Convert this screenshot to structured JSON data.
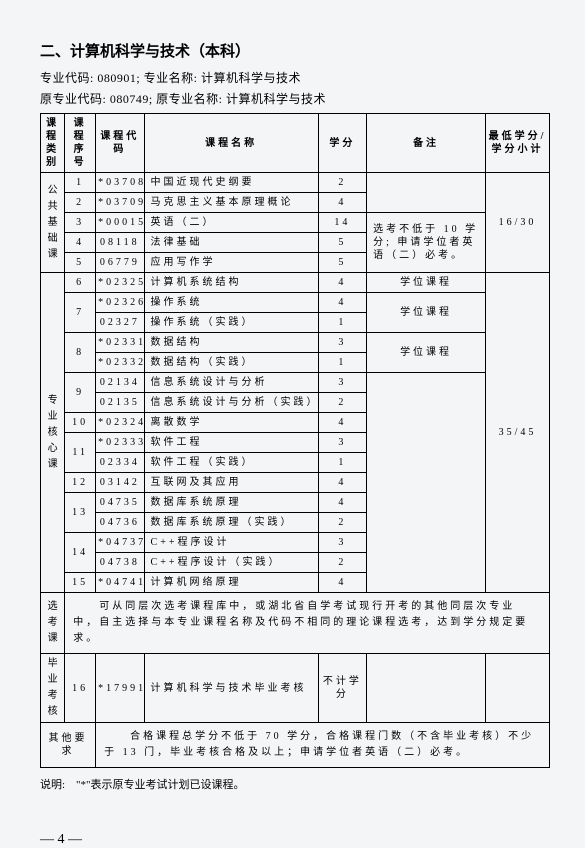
{
  "title": "二、计算机科学与技术（本科）",
  "subtitle1": "专业代码: 080901;  专业名称: 计算机科学与技术",
  "subtitle2": "原专业代码: 080749;  原专业名称: 计算机科学与技术",
  "headers": {
    "category": "课程类别",
    "seq": "课程序号",
    "code": "课程代码",
    "name": "课程名称",
    "credit": "学分",
    "remark": "备注",
    "min": "最低学分/学分小计"
  },
  "cat1": "公共基础课",
  "cat2": "专业核心课",
  "cat3": "选考课",
  "cat4": "毕业考核",
  "cat5": "其他要求",
  "rows": [
    {
      "seq": "1",
      "code": "*03708",
      "name": "中国近现代史纲要",
      "credit": "2"
    },
    {
      "seq": "2",
      "code": "*03709",
      "name": "马克思主义基本原理概论",
      "credit": "4"
    },
    {
      "seq": "3",
      "code": "*00015",
      "name": "英语（二）",
      "credit": "14"
    },
    {
      "seq": "4",
      "code": "08118",
      "name": "法律基础",
      "credit": "5"
    },
    {
      "seq": "5",
      "code": "06779",
      "name": "应用写作学",
      "credit": "5"
    },
    {
      "seq": "6",
      "code": "*02325",
      "name": "计算机系统结构",
      "credit": "4"
    },
    {
      "seq": "7",
      "code": "*02326",
      "name": "操作系统",
      "credit": "4"
    },
    {
      "seq": "",
      "code": "02327",
      "name": "操作系统（实践）",
      "credit": "1"
    },
    {
      "seq": "8",
      "code": "*02331",
      "name": "数据结构",
      "credit": "3"
    },
    {
      "seq": "",
      "code": "*02332",
      "name": "数据结构（实践）",
      "credit": "1"
    },
    {
      "seq": "9",
      "code": "02134",
      "name": "信息系统设计与分析",
      "credit": "3"
    },
    {
      "seq": "",
      "code": "02135",
      "name": "信息系统设计与分析（实践）",
      "credit": "2"
    },
    {
      "seq": "10",
      "code": "*02324",
      "name": "离散数学",
      "credit": "4"
    },
    {
      "seq": "11",
      "code": "*02333",
      "name": "软件工程",
      "credit": "3"
    },
    {
      "seq": "",
      "code": "02334",
      "name": "软件工程（实践）",
      "credit": "1"
    },
    {
      "seq": "12",
      "code": "03142",
      "name": "互联网及其应用",
      "credit": "4"
    },
    {
      "seq": "13",
      "code": "04735",
      "name": "数据库系统原理",
      "credit": "4"
    },
    {
      "seq": "",
      "code": "04736",
      "name": "数据库系统原理（实践）",
      "credit": "2"
    },
    {
      "seq": "14",
      "code": "*04737",
      "name": "C++程序设计",
      "credit": "3"
    },
    {
      "seq": "",
      "code": "04738",
      "name": "C++程序设计（实践）",
      "credit": "2"
    },
    {
      "seq": "15",
      "code": "*04741",
      "name": "计算机网络原理",
      "credit": "4"
    }
  ],
  "remark1": "选考不低于 10 学分; 申请学位者英语（二）必考。",
  "min1": "16/30",
  "remark_degree": "学位课程",
  "min2": "35/45",
  "elective_text": "　　可从同层次选考课程库中，或湖北省自学考试现行开考的其他同层次专业中，自主选择与本专业课程名称及代码不相同的理论课程选考，达到学分规定要求。",
  "grad": {
    "seq": "16",
    "code": "*17991",
    "name": "计算机科学与技术毕业考核",
    "credit": "不计学分"
  },
  "other_text": "　　合格课程总学分不低于 70 学分，合格课程门数（不含毕业考核）不少于 13 门，毕业考核合格及以上；申请学位者英语（二）必考。",
  "footer_note": "说明:　\"*\"表示原专业考试计划已设课程。",
  "page_num": "— 4 —"
}
